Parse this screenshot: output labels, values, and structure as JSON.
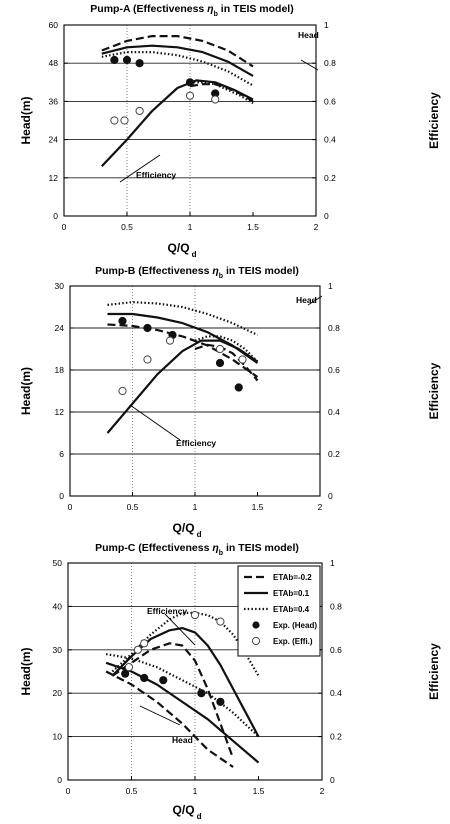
{
  "figure": {
    "series_styles": {
      "ETAb=-0.2": {
        "dash": "8,4",
        "width": 2.2,
        "color": "#111111"
      },
      "ETAb=0.1": {
        "dash": "",
        "width": 2.2,
        "color": "#111111"
      },
      "ETAb=0.4": {
        "dash": "1.5,2.2",
        "width": 2.2,
        "color": "#111111"
      }
    },
    "marker_colors": {
      "filled": "#111111",
      "open_fill": "#ffffff",
      "open_stroke": "#444444"
    }
  },
  "chart_data": [
    {
      "type": "line",
      "title": "Pump-A (Effectiveness ηb in TEIS model)",
      "title_main": "Pump-A (Effectiveness",
      "title_eta": "η",
      "title_sub": "b",
      "title_tail": "in TEIS model)",
      "xlabel": "Q/Q",
      "xlabel_sub": "d",
      "ylabel": "Head(m)",
      "y2label": "Efficiency",
      "xlim": [
        0,
        2
      ],
      "ylim": [
        0,
        60
      ],
      "y2lim": [
        0,
        1
      ],
      "xticks": [
        "0",
        "0.5",
        "1",
        "1.5",
        "2"
      ],
      "yticks": [
        "0",
        "12",
        "24",
        "36",
        "48",
        "60"
      ],
      "y2ticks": [
        "0",
        "0.2",
        "0.4",
        "0.6",
        "0.8",
        "1"
      ],
      "grid": "horizontal",
      "annotations": [
        {
          "text": "Head",
          "at": [
            1.58,
            54
          ]
        },
        {
          "text": "Efficiency",
          "at": [
            0.9,
            0.25
          ]
        }
      ],
      "series": [
        {
          "name": "ETAb=-0.2",
          "axis": "head",
          "x": [
            0.3,
            0.5,
            0.7,
            0.9,
            1.1,
            1.3,
            1.5
          ],
          "y": [
            52,
            55,
            56.5,
            56.5,
            55,
            52,
            47
          ]
        },
        {
          "name": "ETAb=0.1",
          "axis": "head",
          "x": [
            0.3,
            0.5,
            0.7,
            0.9,
            1.1,
            1.3,
            1.5
          ],
          "y": [
            51,
            53,
            53.5,
            53,
            51.5,
            48.5,
            44
          ]
        },
        {
          "name": "ETAb=0.4",
          "axis": "head",
          "x": [
            0.3,
            0.5,
            0.7,
            0.9,
            1.1,
            1.3,
            1.5
          ],
          "y": [
            50,
            51.5,
            51.5,
            50.5,
            48.5,
            45.5,
            41
          ]
        },
        {
          "name": "ETAb=-0.2",
          "axis": "eff",
          "x": [
            1.0,
            1.1,
            1.2,
            1.3,
            1.4,
            1.5
          ],
          "y": [
            0.68,
            0.69,
            0.69,
            0.67,
            0.64,
            0.6
          ]
        },
        {
          "name": "ETAb=0.1",
          "axis": "eff",
          "x": [
            0.3,
            0.5,
            0.7,
            0.9,
            1.05,
            1.2,
            1.35,
            1.5
          ],
          "y": [
            0.26,
            0.4,
            0.55,
            0.67,
            0.71,
            0.7,
            0.66,
            0.61
          ]
        },
        {
          "name": "ETAb=0.4",
          "axis": "eff",
          "x": [
            1.0,
            1.1,
            1.2,
            1.3,
            1.4,
            1.5
          ],
          "y": [
            0.7,
            0.7,
            0.69,
            0.66,
            0.63,
            0.59
          ]
        }
      ],
      "exp_head": {
        "x": [
          0.4,
          0.5,
          0.6,
          1.0,
          1.2
        ],
        "y": [
          49,
          49,
          48,
          42,
          38.5
        ]
      },
      "exp_eff": {
        "x": [
          0.4,
          0.48,
          0.6,
          1.0,
          1.2
        ],
        "y": [
          0.5,
          0.5,
          0.55,
          0.63,
          0.61
        ]
      }
    },
    {
      "type": "line",
      "title": "Pump-B (Effectiveness ηb in TEIS model)",
      "title_main": "Pump-B (Effectiveness",
      "title_eta": "η",
      "title_sub": "b",
      "title_tail": "in TEIS model)",
      "xlabel": "Q/Q",
      "xlabel_sub": "d",
      "ylabel": "Head(m)",
      "y2label": "Efficiency",
      "xlim": [
        0,
        2
      ],
      "ylim": [
        0,
        30
      ],
      "y2lim": [
        0,
        1
      ],
      "xticks": [
        "0",
        "0.5",
        "1",
        "1.5",
        "2"
      ],
      "yticks": [
        "0",
        "6",
        "12",
        "18",
        "24",
        "30"
      ],
      "y2ticks": [
        "0",
        "0.2",
        "0.4",
        "0.6",
        "0.8",
        "1"
      ],
      "grid": "horizontal",
      "annotations": [
        {
          "text": "Head",
          "at": [
            1.6,
            27
          ]
        },
        {
          "text": "Efficiency",
          "at": [
            0.7,
            0.4
          ]
        }
      ],
      "series": [
        {
          "name": "ETAb=-0.2",
          "axis": "head",
          "x": [
            0.3,
            0.5,
            0.7,
            0.9,
            1.1,
            1.3,
            1.5
          ],
          "y": [
            24.5,
            24.3,
            23.7,
            22.8,
            21.5,
            19.5,
            17
          ]
        },
        {
          "name": "ETAb=0.1",
          "axis": "head",
          "x": [
            0.3,
            0.5,
            0.7,
            0.9,
            1.1,
            1.3,
            1.5
          ],
          "y": [
            26,
            26,
            25.5,
            24.7,
            23.4,
            21.5,
            19
          ]
        },
        {
          "name": "ETAb=0.4",
          "axis": "head",
          "x": [
            0.3,
            0.5,
            0.7,
            0.9,
            1.1,
            1.3,
            1.5
          ],
          "y": [
            27.3,
            27.7,
            27.5,
            27,
            26,
            24.7,
            23
          ]
        },
        {
          "name": "ETAb=-0.2",
          "axis": "eff",
          "x": [
            1.0,
            1.1,
            1.2,
            1.3,
            1.4,
            1.5
          ],
          "y": [
            0.7,
            0.72,
            0.71,
            0.68,
            0.62,
            0.55
          ]
        },
        {
          "name": "ETAb=0.1",
          "axis": "eff",
          "x": [
            0.3,
            0.5,
            0.7,
            0.9,
            1.05,
            1.2,
            1.35,
            1.5
          ],
          "y": [
            0.3,
            0.44,
            0.58,
            0.69,
            0.74,
            0.74,
            0.7,
            0.64
          ]
        },
        {
          "name": "ETAb=0.4",
          "axis": "eff",
          "x": [
            1.0,
            1.1,
            1.2,
            1.3,
            1.4,
            1.5
          ],
          "y": [
            0.74,
            0.76,
            0.76,
            0.74,
            0.7,
            0.64
          ]
        }
      ],
      "exp_head": {
        "x": [
          0.42,
          0.62,
          0.82,
          1.2,
          1.35
        ],
        "y": [
          25,
          24,
          23,
          19,
          15.5
        ]
      },
      "exp_eff": {
        "x": [
          0.42,
          0.62,
          0.8,
          1.2,
          1.38
        ],
        "y": [
          0.5,
          0.65,
          0.74,
          0.7,
          0.65
        ]
      }
    },
    {
      "type": "line",
      "title": "Pump-C (Effectiveness ηb in TEIS model)",
      "title_main": "Pump-C (Effectiveness",
      "title_eta": "η",
      "title_sub": "b",
      "title_tail": "in TEIS model)",
      "xlabel": "Q/Q",
      "xlabel_sub": "d",
      "ylabel": "Head(m)",
      "y2label": "Efficiency",
      "xlim": [
        0,
        2
      ],
      "ylim": [
        0,
        50
      ],
      "y2lim": [
        0,
        1
      ],
      "xticks": [
        "0",
        "0.5",
        "1",
        "1.5",
        "2"
      ],
      "yticks": [
        "0",
        "10",
        "20",
        "30",
        "40",
        "50"
      ],
      "y2ticks": [
        "0",
        "0.2",
        "0.4",
        "0.6",
        "0.8",
        "1"
      ],
      "grid": "horizontal",
      "legend_position": "top-right",
      "legend": [
        {
          "label": "ETAb=-0.2",
          "kind": "line",
          "style": "ETAb=-0.2"
        },
        {
          "label": "ETAb=0.1",
          "kind": "line",
          "style": "ETAb=0.1"
        },
        {
          "label": "ETAb=0.4",
          "kind": "line",
          "style": "ETAb=0.4"
        },
        {
          "label": "Exp. (Head)",
          "kind": "filled"
        },
        {
          "label": "Exp. (Effi.)",
          "kind": "open"
        }
      ],
      "annotations": [
        {
          "text": "Efficiency",
          "at": [
            0.35,
            0.82
          ]
        },
        {
          "text": "Head",
          "at": [
            0.7,
            0.32
          ]
        }
      ],
      "series": [
        {
          "name": "ETAb=-0.2",
          "axis": "head",
          "x": [
            0.3,
            0.5,
            0.7,
            0.9,
            1.1,
            1.3
          ],
          "y": [
            25,
            22,
            18,
            13,
            7,
            3
          ]
        },
        {
          "name": "ETAb=0.1",
          "axis": "head",
          "x": [
            0.3,
            0.5,
            0.7,
            0.9,
            1.1,
            1.3,
            1.5
          ],
          "y": [
            27,
            25,
            22,
            18,
            14,
            9,
            4
          ]
        },
        {
          "name": "ETAb=0.4",
          "axis": "head",
          "x": [
            0.3,
            0.5,
            0.7,
            0.9,
            1.1,
            1.3,
            1.5
          ],
          "y": [
            29,
            28,
            26,
            23,
            20,
            15.5,
            10
          ]
        },
        {
          "name": "ETAb=-0.2",
          "axis": "eff",
          "x": [
            0.35,
            0.5,
            0.65,
            0.8,
            0.9,
            1.0,
            1.1,
            1.2,
            1.3
          ],
          "y": [
            0.48,
            0.54,
            0.6,
            0.63,
            0.62,
            0.55,
            0.42,
            0.26,
            0.1
          ]
        },
        {
          "name": "ETAb=0.1",
          "axis": "eff",
          "x": [
            0.35,
            0.5,
            0.65,
            0.8,
            0.9,
            1.0,
            1.1,
            1.2,
            1.3,
            1.4,
            1.5
          ],
          "y": [
            0.48,
            0.57,
            0.65,
            0.69,
            0.7,
            0.68,
            0.62,
            0.53,
            0.42,
            0.31,
            0.2
          ]
        },
        {
          "name": "ETAb=0.4",
          "axis": "eff",
          "x": [
            0.35,
            0.5,
            0.65,
            0.8,
            0.9,
            1.0,
            1.1,
            1.2,
            1.3,
            1.4,
            1.5
          ],
          "y": [
            0.5,
            0.58,
            0.67,
            0.74,
            0.77,
            0.77,
            0.76,
            0.73,
            0.67,
            0.58,
            0.48
          ]
        }
      ],
      "exp_head": {
        "x": [
          0.45,
          0.6,
          0.75,
          1.05,
          1.2
        ],
        "y": [
          24.5,
          23.5,
          23,
          20,
          18
        ]
      },
      "exp_eff": {
        "x": [
          0.48,
          0.55,
          0.6,
          1.0,
          1.2
        ],
        "y": [
          0.52,
          0.6,
          0.63,
          0.76,
          0.73
        ]
      }
    }
  ]
}
